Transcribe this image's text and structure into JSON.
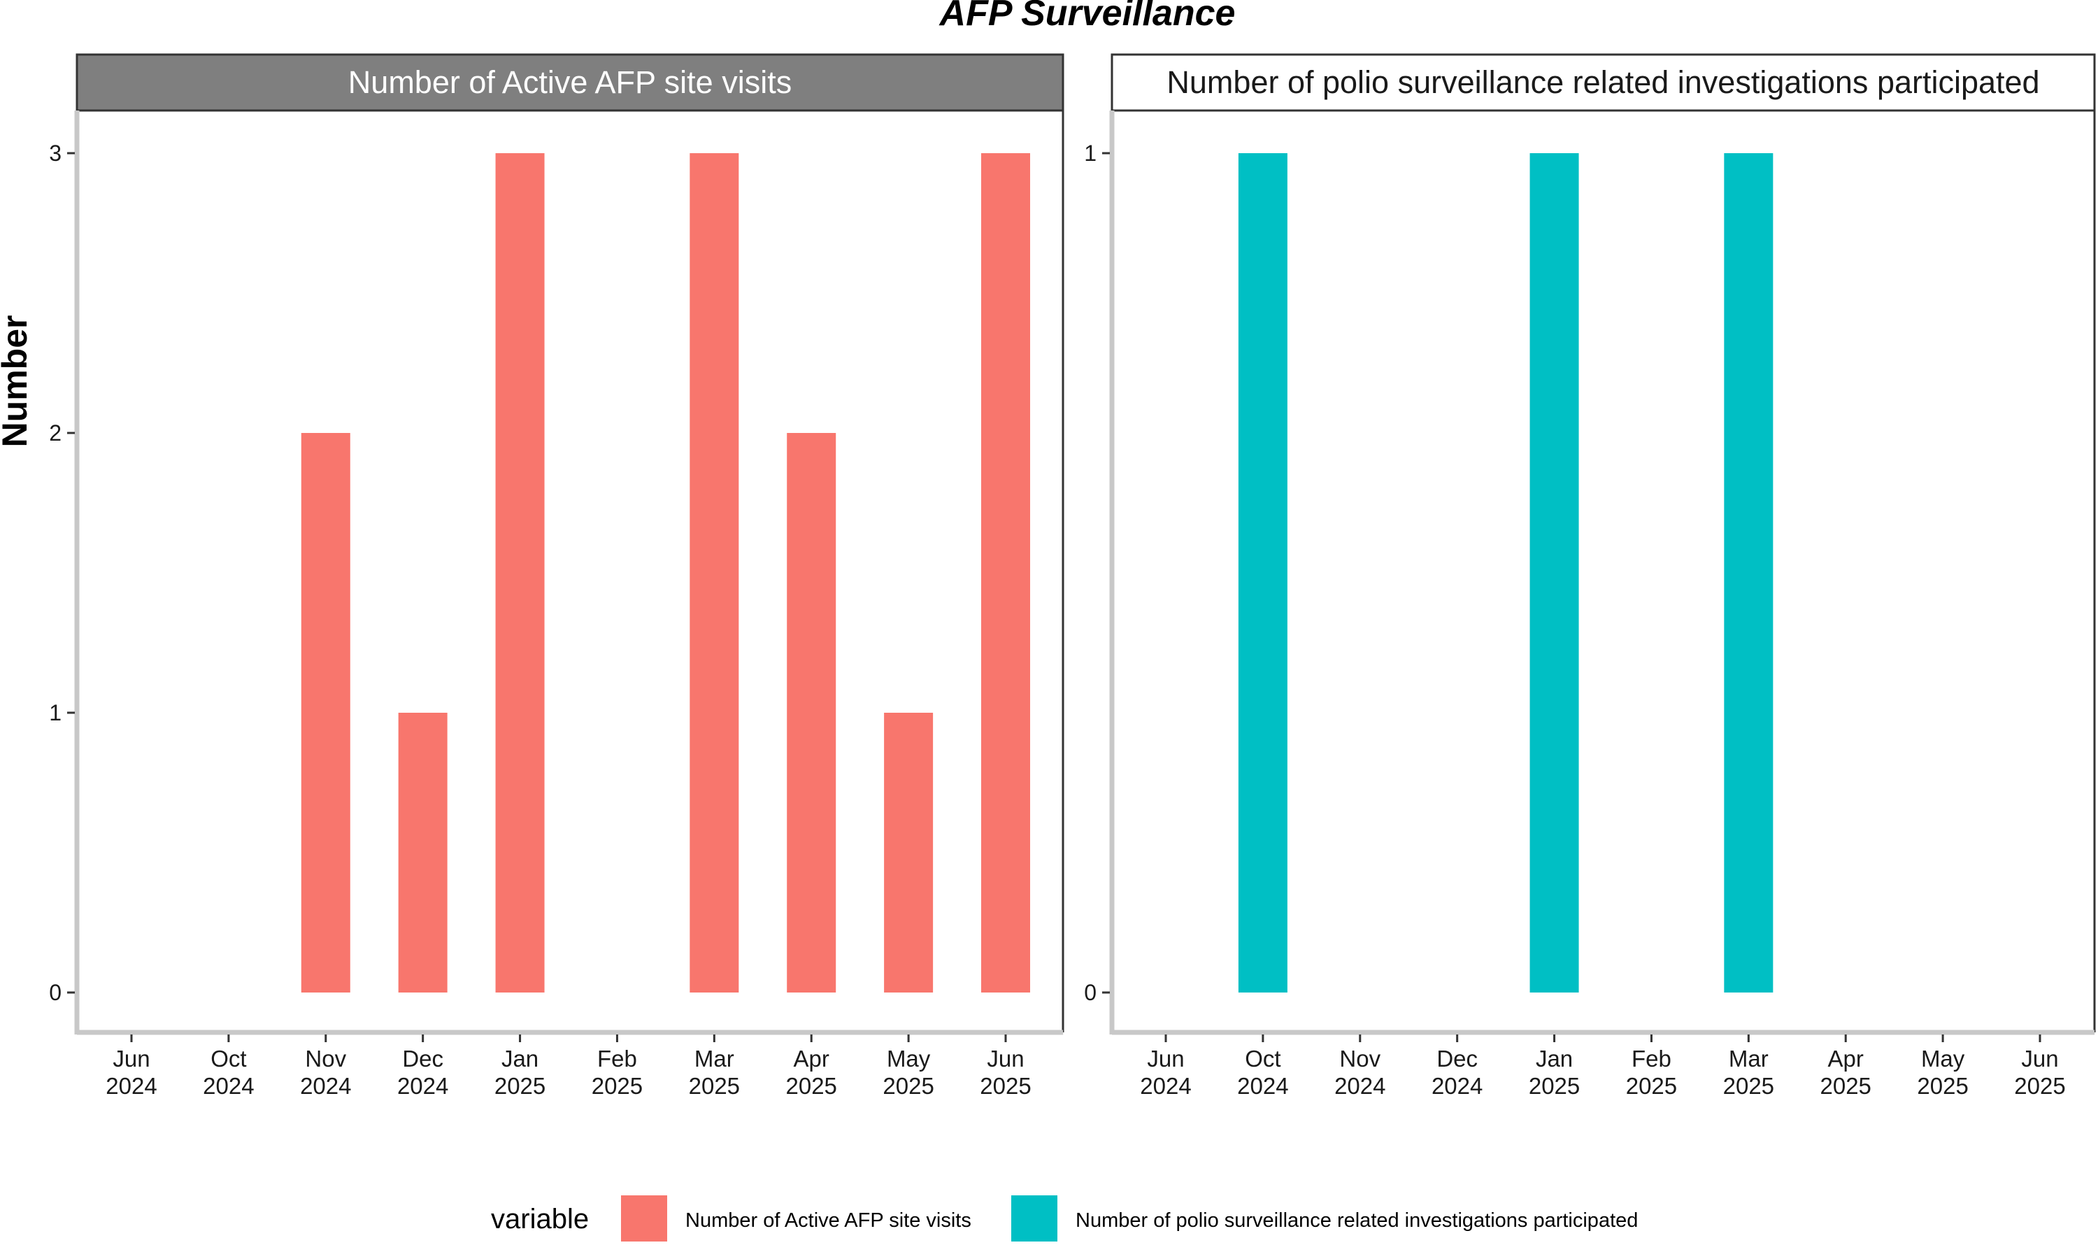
{
  "chart_data": {
    "title": "AFP Surveillance",
    "ylabel": "Number",
    "legend": {
      "title": "variable",
      "position": "bottom",
      "items": [
        {
          "label": "Number of Active AFP site visits",
          "color": "#F8766D"
        },
        {
          "label": "Number of polio surveillance related investigations participated",
          "color": "#00BFC4"
        }
      ]
    },
    "panels": [
      {
        "type": "bar",
        "strip": "Number of Active AFP site visits",
        "color": "#F8766D",
        "ylim": [
          0,
          3
        ],
        "yticks": [
          "0",
          "1",
          "2",
          "3"
        ],
        "categories": [
          {
            "month": "Jun",
            "year": "2024"
          },
          {
            "month": "Oct",
            "year": "2024"
          },
          {
            "month": "Nov",
            "year": "2024"
          },
          {
            "month": "Dec",
            "year": "2024"
          },
          {
            "month": "Jan",
            "year": "2025"
          },
          {
            "month": "Feb",
            "year": "2025"
          },
          {
            "month": "Mar",
            "year": "2025"
          },
          {
            "month": "Apr",
            "year": "2025"
          },
          {
            "month": "May",
            "year": "2025"
          },
          {
            "month": "Jun",
            "year": "2025"
          }
        ],
        "values": [
          0,
          0,
          2,
          1,
          3,
          0,
          3,
          2,
          1,
          3
        ]
      },
      {
        "type": "bar",
        "strip": "Number of polio surveillance related investigations participated",
        "color": "#00BFC4",
        "ylim": [
          0,
          1
        ],
        "yticks": [
          "0",
          "1"
        ],
        "categories": [
          {
            "month": "Jun",
            "year": "2024"
          },
          {
            "month": "Oct",
            "year": "2024"
          },
          {
            "month": "Nov",
            "year": "2024"
          },
          {
            "month": "Dec",
            "year": "2024"
          },
          {
            "month": "Jan",
            "year": "2025"
          },
          {
            "month": "Feb",
            "year": "2025"
          },
          {
            "month": "Mar",
            "year": "2025"
          },
          {
            "month": "Apr",
            "year": "2025"
          },
          {
            "month": "May",
            "year": "2025"
          },
          {
            "month": "Jun",
            "year": "2025"
          }
        ],
        "values": [
          0,
          1,
          0,
          0,
          1,
          0,
          1,
          0,
          0,
          0
        ]
      }
    ]
  }
}
